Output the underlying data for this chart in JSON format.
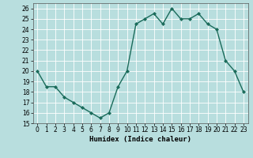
{
  "x": [
    0,
    1,
    2,
    3,
    4,
    5,
    6,
    7,
    8,
    9,
    10,
    11,
    12,
    13,
    14,
    15,
    16,
    17,
    18,
    19,
    20,
    21,
    22,
    23
  ],
  "y": [
    20,
    18.5,
    18.5,
    17.5,
    17,
    16.5,
    16,
    15.5,
    16,
    18.5,
    20,
    24.5,
    25,
    25.5,
    24.5,
    26,
    25,
    25,
    25.5,
    24.5,
    24,
    21,
    20,
    18
  ],
  "line_color": "#1a6b5a",
  "marker_color": "#1a6b5a",
  "bg_color": "#b8dede",
  "grid_color": "#ffffff",
  "xlabel": "Humidex (Indice chaleur)",
  "ylim": [
    15,
    26.5
  ],
  "yticks": [
    15,
    16,
    17,
    18,
    19,
    20,
    21,
    22,
    23,
    24,
    25,
    26
  ],
  "xticks": [
    0,
    1,
    2,
    3,
    4,
    5,
    6,
    7,
    8,
    9,
    10,
    11,
    12,
    13,
    14,
    15,
    16,
    17,
    18,
    19,
    20,
    21,
    22,
    23
  ],
  "xlabel_fontsize": 6.5,
  "tick_fontsize": 5.5,
  "marker_size": 2.0,
  "line_width": 1.0
}
